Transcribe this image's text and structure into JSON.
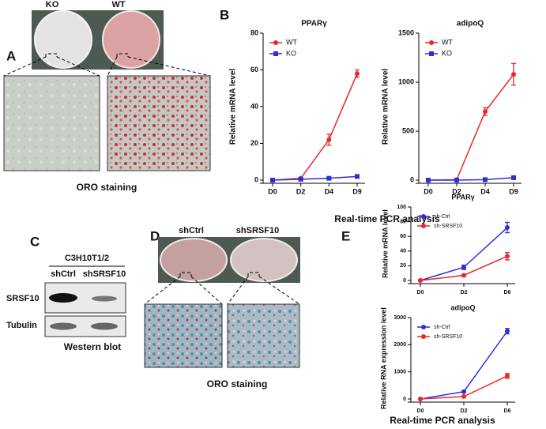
{
  "chart_data": [
    {
      "type": "line",
      "title": "PPARγ",
      "y_label": "Relative mRNA level",
      "categories": [
        "D0",
        "D2",
        "D4",
        "D9"
      ],
      "series": [
        {
          "name": "WT",
          "color": "#e8282b",
          "marker": "circle",
          "values": [
            0,
            1,
            22,
            58
          ],
          "errors": [
            0.5,
            0.5,
            3,
            2
          ]
        },
        {
          "name": "KO",
          "color": "#2e2ed8",
          "marker": "square",
          "values": [
            0,
            0.5,
            1,
            2
          ],
          "errors": [
            0.3,
            0.3,
            0.5,
            0.5
          ]
        }
      ],
      "ylim": [
        0,
        80
      ],
      "yticks": [
        0,
        20,
        40,
        60,
        80
      ],
      "legend": "upper left"
    },
    {
      "type": "line",
      "title": "adipoQ",
      "y_label": "Relative mRNA level",
      "categories": [
        "D0",
        "D2",
        "D4",
        "D9"
      ],
      "series": [
        {
          "name": "WT",
          "color": "#e8282b",
          "marker": "circle",
          "values": [
            0,
            5,
            700,
            1080
          ],
          "errors": [
            5,
            5,
            40,
            110
          ]
        },
        {
          "name": "KO",
          "color": "#2e2ed8",
          "marker": "square",
          "values": [
            0,
            0,
            5,
            25
          ],
          "errors": [
            2,
            2,
            5,
            10
          ]
        }
      ],
      "ylim": [
        0,
        1500
      ],
      "yticks": [
        0,
        500,
        1000,
        1500
      ],
      "legend": "upper left"
    },
    {
      "type": "line",
      "title": "PPARγ",
      "y_label": "Relative mRNA level",
      "categories": [
        "D0",
        "D2",
        "D6"
      ],
      "series": [
        {
          "name": "sh-Ctrl",
          "color": "#2e2ed8",
          "marker": "circle",
          "values": [
            0,
            18,
            72
          ],
          "errors": [
            0,
            3,
            7
          ]
        },
        {
          "name": "sh-SRSF10",
          "color": "#e8282b",
          "marker": "circle",
          "values": [
            0,
            7,
            33
          ],
          "errors": [
            0,
            1,
            5
          ]
        }
      ],
      "ylim": [
        0,
        100
      ],
      "yticks": [
        0,
        20,
        40,
        60,
        80,
        100
      ],
      "legend": "upper left"
    },
    {
      "type": "line",
      "title": "adipoQ",
      "y_label": "Relative RNA expression level",
      "categories": [
        "D0",
        "D2",
        "D6"
      ],
      "series": [
        {
          "name": "sh-Ctrl",
          "color": "#2e2ed8",
          "marker": "circle",
          "values": [
            0,
            270,
            2500
          ],
          "errors": [
            0,
            20,
            100
          ]
        },
        {
          "name": "sh-SRSF10",
          "color": "#e8282b",
          "marker": "circle",
          "values": [
            0,
            90,
            850
          ],
          "errors": [
            0,
            20,
            90
          ]
        }
      ],
      "ylim": [
        0,
        3000
      ],
      "yticks": [
        0,
        1000,
        2000,
        3000
      ],
      "legend": "upper left"
    }
  ],
  "figure": {
    "A": {
      "letter": "A",
      "lanes": [
        "KO",
        "WT"
      ],
      "caption": "ORO staining"
    },
    "B": {
      "letter": "B",
      "x_label": "Real-time PCR analysis"
    },
    "C": {
      "letter": "C",
      "cell_line": "C3H10T1/2",
      "lanes": [
        "shCtrl",
        "shSRSF10"
      ],
      "rows": [
        "SRSF10",
        "Tubulin"
      ],
      "caption": "Western blot"
    },
    "D": {
      "letter": "D",
      "lanes": [
        "shCtrl",
        "shSRSF10"
      ],
      "caption": "ORO staining"
    },
    "E": {
      "letter": "E",
      "x_label": "Real-time PCR analysis"
    }
  }
}
